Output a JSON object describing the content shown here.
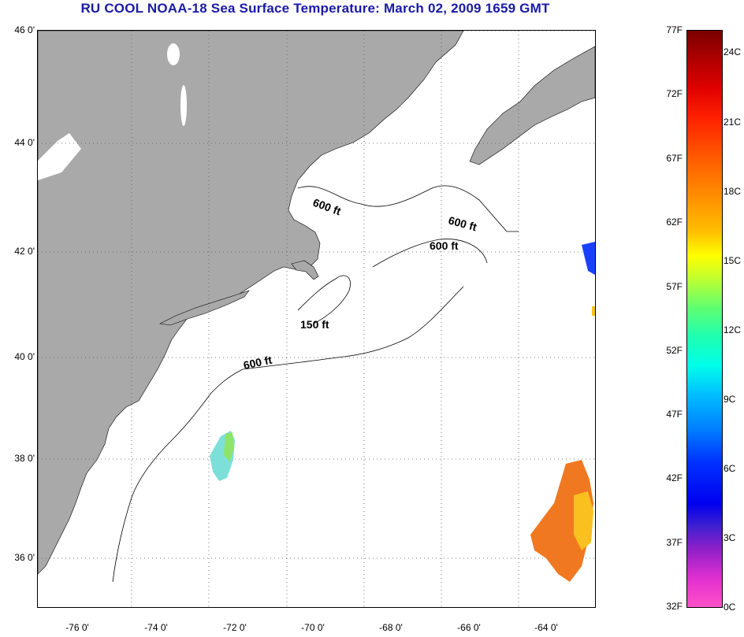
{
  "title": "RU COOL  NOAA-18  Sea Surface Temperature:  March 02, 2009 1659 GMT",
  "map": {
    "lat_labels": [
      "46 0'",
      "44 0'",
      "42 0'",
      "40 0'",
      "38 0'",
      "36 0'"
    ],
    "lon_labels": [
      "-76 0'",
      "-74 0'",
      "-72 0'",
      "-70 0'",
      "-68 0'",
      "-66 0'",
      "-64 0'"
    ],
    "contours": [
      "600 ft",
      "600 ft",
      "600 ft",
      "150 ft",
      "600 ft"
    ],
    "colors": {
      "land": "#a9a9a9",
      "water": "#ffffff",
      "grid": "#555555"
    }
  },
  "colorbar": {
    "fahrenheit": [
      "77F",
      "72F",
      "67F",
      "62F",
      "57F",
      "52F",
      "47F",
      "42F",
      "37F",
      "32F"
    ],
    "celsius": [
      "24C",
      "21C",
      "18C",
      "15C",
      "12C",
      "9C",
      "6C",
      "3C",
      "0C"
    ]
  }
}
